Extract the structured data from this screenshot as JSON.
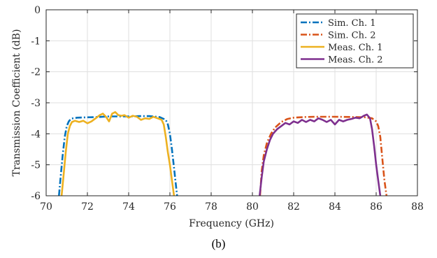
{
  "caption": "(b)",
  "chart_data": {
    "type": "line",
    "xlabel": "Frequency (GHz)",
    "ylabel": "Transmission Coefficient (dB)",
    "xlim": [
      70,
      88
    ],
    "ylim": [
      -6,
      0
    ],
    "xticks": [
      "70",
      "72",
      "74",
      "76",
      "78",
      "80",
      "82",
      "84",
      "86",
      "88"
    ],
    "yticks": [
      "0",
      "-1",
      "-2",
      "-3",
      "-4",
      "-5",
      "-6"
    ],
    "grid": true,
    "legend_position": "top-right",
    "colors": {
      "sim1": "#0072BD",
      "sim2": "#D95319",
      "meas1": "#EDB120",
      "meas2": "#7E2F8E"
    },
    "series": [
      {
        "name": "Sim. Ch. 1",
        "style": "dashdot",
        "color": "#0072BD",
        "x": [
          70.62,
          70.7,
          70.8,
          70.9,
          71.0,
          71.1,
          71.2,
          71.3,
          71.5,
          72.0,
          72.5,
          73.0,
          73.5,
          74.0,
          74.5,
          75.0,
          75.5,
          75.8,
          75.9,
          76.0,
          76.1,
          76.2,
          76.3,
          76.35
        ],
        "y": [
          -6.0,
          -5.4,
          -4.7,
          -4.1,
          -3.75,
          -3.6,
          -3.52,
          -3.5,
          -3.48,
          -3.47,
          -3.46,
          -3.44,
          -3.44,
          -3.44,
          -3.43,
          -3.43,
          -3.46,
          -3.55,
          -3.7,
          -4.0,
          -4.5,
          -5.1,
          -5.7,
          -6.0
        ]
      },
      {
        "name": "Sim. Ch. 2",
        "style": "dashdot",
        "color": "#D95319",
        "x": [
          80.37,
          80.45,
          80.55,
          80.7,
          80.9,
          81.1,
          81.4,
          81.7,
          82.0,
          82.5,
          83.0,
          84.0,
          85.0,
          85.5,
          85.8,
          86.0,
          86.1,
          86.2,
          86.3,
          86.4,
          86.5
        ],
        "y": [
          -6.0,
          -5.2,
          -4.7,
          -4.3,
          -4.0,
          -3.8,
          -3.62,
          -3.52,
          -3.48,
          -3.46,
          -3.45,
          -3.45,
          -3.46,
          -3.47,
          -3.5,
          -3.6,
          -3.75,
          -4.1,
          -4.8,
          -5.5,
          -6.0
        ]
      },
      {
        "name": "Meas. Ch. 1",
        "style": "solid",
        "color": "#EDB120",
        "x": [
          70.75,
          70.85,
          70.95,
          71.05,
          71.15,
          71.25,
          71.4,
          71.6,
          71.8,
          72.0,
          72.2,
          72.4,
          72.6,
          72.75,
          72.9,
          73.05,
          73.2,
          73.35,
          73.5,
          73.65,
          73.8,
          74.0,
          74.2,
          74.4,
          74.6,
          74.8,
          75.0,
          75.2,
          75.4,
          75.6,
          75.7,
          75.8,
          75.9,
          76.0,
          76.1,
          76.2
        ],
        "y": [
          -6.0,
          -5.3,
          -4.6,
          -4.0,
          -3.75,
          -3.62,
          -3.58,
          -3.62,
          -3.58,
          -3.66,
          -3.6,
          -3.5,
          -3.4,
          -3.35,
          -3.45,
          -3.6,
          -3.35,
          -3.3,
          -3.4,
          -3.42,
          -3.4,
          -3.48,
          -3.42,
          -3.45,
          -3.55,
          -3.5,
          -3.52,
          -3.45,
          -3.5,
          -3.55,
          -3.7,
          -4.1,
          -4.6,
          -5.0,
          -5.5,
          -6.0
        ]
      },
      {
        "name": "Meas. Ch. 2",
        "style": "solid",
        "color": "#7E2F8E",
        "x": [
          80.35,
          80.45,
          80.55,
          80.7,
          80.85,
          81.0,
          81.2,
          81.4,
          81.6,
          81.8,
          82.0,
          82.2,
          82.4,
          82.6,
          82.8,
          83.0,
          83.2,
          83.4,
          83.6,
          83.8,
          84.0,
          84.2,
          84.4,
          84.6,
          84.8,
          85.0,
          85.2,
          85.4,
          85.55,
          85.7,
          85.8,
          85.9,
          86.0,
          86.1,
          86.2
        ],
        "y": [
          -6.0,
          -5.4,
          -4.9,
          -4.5,
          -4.2,
          -4.0,
          -3.85,
          -3.75,
          -3.65,
          -3.7,
          -3.6,
          -3.65,
          -3.55,
          -3.62,
          -3.55,
          -3.6,
          -3.5,
          -3.55,
          -3.62,
          -3.55,
          -3.7,
          -3.55,
          -3.6,
          -3.55,
          -3.52,
          -3.48,
          -3.5,
          -3.42,
          -3.38,
          -3.5,
          -3.85,
          -4.4,
          -5.0,
          -5.5,
          -6.0
        ]
      }
    ]
  }
}
